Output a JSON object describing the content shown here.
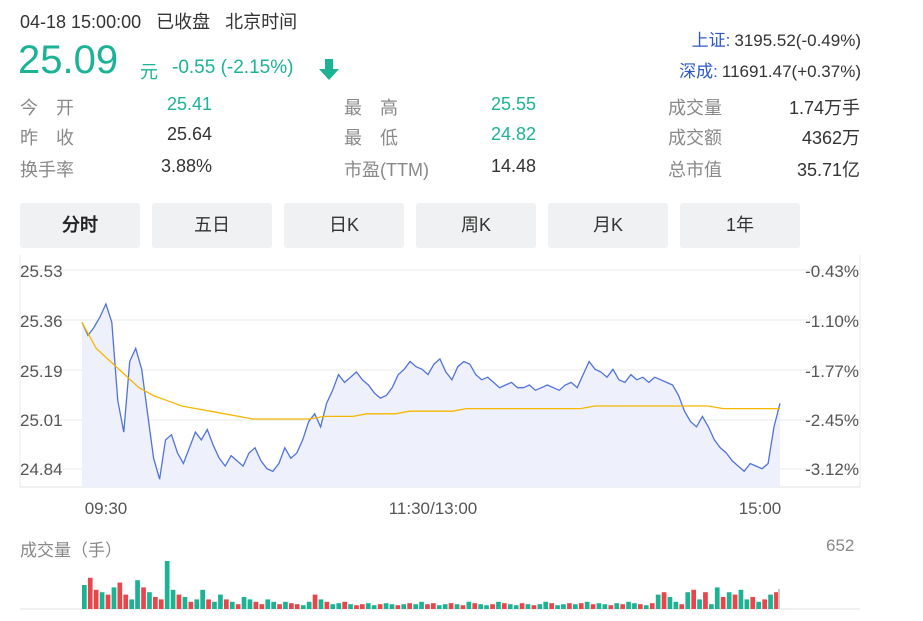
{
  "header": {
    "datetime": "04-18 15:00:00",
    "market_status": "已收盘",
    "timezone": "北京时间",
    "price": "25.09",
    "currency_unit": "元",
    "change": "-0.55 (-2.15%)",
    "direction_icon": "arrow-down-icon"
  },
  "indices": [
    {
      "name": "上证:",
      "value": "3195.52(-0.49%)"
    },
    {
      "name": "深成:",
      "value": "11691.47(+0.37%)"
    }
  ],
  "stats": [
    {
      "label": "今　开",
      "value": "25.41",
      "color": "green"
    },
    {
      "label": "昨　收",
      "value": "25.64",
      "color": "dark"
    },
    {
      "label": "换手率",
      "value": "3.88%",
      "color": "dark"
    },
    {
      "label": "最　高",
      "value": "25.55",
      "color": "green"
    },
    {
      "label": "最　低",
      "value": "24.82",
      "color": "green"
    },
    {
      "label": "市盈(TTM)",
      "value": "14.48",
      "color": "dark"
    },
    {
      "label": "成交量",
      "value": "1.74万手",
      "color": "dark"
    },
    {
      "label": "成交额",
      "value": "4362万",
      "color": "dark"
    },
    {
      "label": "总市值",
      "value": "35.71亿",
      "color": "dark"
    }
  ],
  "tabs": [
    "分时",
    "五日",
    "日K",
    "周K",
    "月K",
    "1年"
  ],
  "active_tab": "分时",
  "colors": {
    "up": "#e8464a",
    "down": "#1bb394",
    "price_line": "#5073d8",
    "avg_line": "#f5b700",
    "link": "#2b59c3"
  },
  "chart_data": {
    "type": "line",
    "x_ticks": [
      "09:30",
      "11:30/13:00",
      "15:00"
    ],
    "y_left_ticks": [
      "25.53",
      "25.36",
      "25.19",
      "25.01",
      "24.84"
    ],
    "y_right_ticks": [
      "-0.43%",
      "-1.10%",
      "-1.77%",
      "-2.45%",
      "-3.12%"
    ],
    "ylim": [
      24.77,
      25.6
    ],
    "series": [
      {
        "name": "price",
        "values": [
          25.4,
          25.35,
          25.38,
          25.42,
          25.47,
          25.4,
          25.1,
          24.98,
          25.25,
          25.3,
          25.22,
          25.05,
          24.88,
          24.8,
          24.95,
          24.97,
          24.9,
          24.86,
          24.92,
          24.98,
          24.95,
          24.99,
          24.93,
          24.88,
          24.85,
          24.89,
          24.87,
          24.85,
          24.9,
          24.92,
          24.87,
          24.84,
          24.83,
          24.86,
          24.92,
          24.88,
          24.9,
          24.95,
          25.02,
          25.05,
          25.0,
          25.09,
          25.14,
          25.2,
          25.17,
          25.19,
          25.21,
          25.18,
          25.16,
          25.13,
          25.11,
          25.12,
          25.15,
          25.2,
          25.22,
          25.25,
          25.23,
          25.22,
          25.2,
          25.24,
          25.26,
          25.21,
          25.18,
          25.23,
          25.25,
          25.24,
          25.2,
          25.18,
          25.19,
          25.17,
          25.15,
          25.16,
          25.17,
          25.15,
          25.15,
          25.16,
          25.14,
          25.15,
          25.16,
          25.15,
          25.14,
          25.16,
          25.17,
          25.15,
          25.2,
          25.25,
          25.22,
          25.21,
          25.19,
          25.22,
          25.18,
          25.17,
          25.2,
          25.18,
          25.19,
          25.17,
          25.19,
          25.18,
          25.17,
          25.16,
          25.12,
          25.06,
          25.02,
          25.0,
          25.04,
          25.0,
          24.95,
          24.92,
          24.9,
          24.87,
          24.85,
          24.83,
          24.86,
          24.85,
          24.84,
          24.86,
          25.0,
          25.09
        ]
      },
      {
        "name": "average",
        "values": [
          25.4,
          25.3,
          25.25,
          25.2,
          25.15,
          25.12,
          25.1,
          25.08,
          25.07,
          25.06,
          25.05,
          25.04,
          25.03,
          25.03,
          25.03,
          25.03,
          25.03,
          25.04,
          25.04,
          25.04,
          25.05,
          25.05,
          25.05,
          25.06,
          25.06,
          25.06,
          25.06,
          25.07,
          25.07,
          25.07,
          25.07,
          25.07,
          25.07,
          25.07,
          25.07,
          25.07,
          25.08,
          25.08,
          25.08,
          25.08,
          25.08,
          25.08,
          25.08,
          25.08,
          25.08,
          25.07,
          25.07,
          25.07,
          25.07,
          25.07
        ]
      }
    ],
    "volume": {
      "title": "成交量（手）",
      "max_label": "652",
      "bars": [
        0.5,
        0.65,
        0.4,
        0.35,
        0.3,
        0.45,
        0.55,
        0.3,
        0.2,
        0.6,
        0.45,
        0.35,
        0.25,
        0.2,
        1.0,
        0.4,
        0.3,
        0.25,
        0.15,
        0.2,
        0.4,
        0.2,
        0.15,
        0.3,
        0.2,
        0.15,
        0.1,
        0.25,
        0.2,
        0.15,
        0.1,
        0.2,
        0.15,
        0.1,
        0.15,
        0.12,
        0.1,
        0.08,
        0.15,
        0.3,
        0.2,
        0.15,
        0.1,
        0.12,
        0.15,
        0.1,
        0.08,
        0.1,
        0.12,
        0.08,
        0.1,
        0.12,
        0.1,
        0.08,
        0.1,
        0.12,
        0.1,
        0.15,
        0.1,
        0.12,
        0.08,
        0.1,
        0.12,
        0.1,
        0.08,
        0.15,
        0.12,
        0.1,
        0.08,
        0.1,
        0.15,
        0.12,
        0.1,
        0.08,
        0.12,
        0.1,
        0.08,
        0.1,
        0.15,
        0.12,
        0.08,
        0.1,
        0.12,
        0.1,
        0.12,
        0.15,
        0.1,
        0.12,
        0.1,
        0.08,
        0.12,
        0.1,
        0.15,
        0.12,
        0.1,
        0.08,
        0.12,
        0.3,
        0.35,
        0.25,
        0.15,
        0.1,
        0.35,
        0.4,
        0.2,
        0.35,
        0.1,
        0.45,
        0.25,
        0.35,
        0.3,
        0.4,
        0.2,
        0.25,
        0.15,
        0.2,
        0.3,
        0.35
      ],
      "bar_colors": [
        "g",
        "r",
        "r",
        "g",
        "r",
        "g",
        "r",
        "r",
        "g",
        "g",
        "r",
        "g",
        "r",
        "r",
        "g",
        "g",
        "r",
        "g",
        "r",
        "g",
        "g",
        "r",
        "g",
        "g",
        "r",
        "g",
        "r",
        "g",
        "g",
        "r",
        "r",
        "g",
        "g",
        "r",
        "g",
        "r",
        "r",
        "g",
        "g",
        "r",
        "g",
        "r",
        "g",
        "g",
        "r",
        "g",
        "r",
        "r",
        "g",
        "g",
        "r",
        "g",
        "g",
        "r",
        "g",
        "r",
        "g",
        "g",
        "r",
        "r",
        "g",
        "g",
        "r",
        "g",
        "r",
        "g",
        "r",
        "g",
        "g",
        "r",
        "g",
        "r",
        "g",
        "g",
        "r",
        "g",
        "r",
        "g",
        "g",
        "r",
        "g",
        "g",
        "r",
        "g",
        "r",
        "g",
        "r",
        "g",
        "g",
        "r",
        "g",
        "r",
        "g",
        "g",
        "r",
        "g",
        "r",
        "g",
        "r",
        "g",
        "g",
        "r",
        "g",
        "r",
        "g",
        "r",
        "g",
        "g",
        "r",
        "g",
        "r",
        "g",
        "g",
        "r",
        "g",
        "r",
        "g",
        "r"
      ]
    }
  }
}
